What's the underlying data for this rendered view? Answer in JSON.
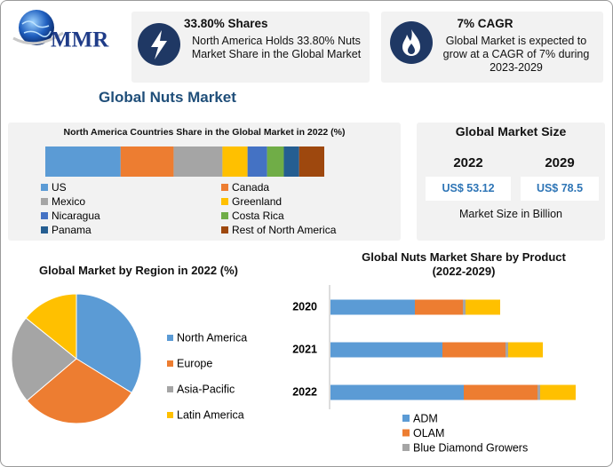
{
  "logo": "MMR",
  "title": "Global Nuts Market",
  "cards": [
    {
      "heading": "33.80% Shares",
      "text": "North America Holds 33.80% Nuts Market Share in the Global Market"
    },
    {
      "heading": "7% CAGR",
      "text": "Global Market is expected to grow at a CAGR of 7% during 2023-2029"
    }
  ],
  "market_size": {
    "title": "Global Market Size",
    "years": [
      "2022",
      "2029"
    ],
    "values": [
      "US$ 53.12",
      "US$ 78.5"
    ],
    "note": "Market Size in Billion"
  },
  "chart_data": [
    {
      "type": "bar",
      "orientation": "horizontal",
      "stacked": true,
      "title": "North America Countries Share in the Global Market in 2022 (%)",
      "categories": [
        null
      ],
      "series": [
        {
          "name": "US",
          "color": "#5b9bd5",
          "values": [
            27
          ]
        },
        {
          "name": "Canada",
          "color": "#ed7d31",
          "values": [
            19
          ]
        },
        {
          "name": "Mexico",
          "color": "#a5a5a5",
          "values": [
            17.5
          ]
        },
        {
          "name": "Greenland",
          "color": "#ffc000",
          "values": [
            9
          ]
        },
        {
          "name": "Nicaragua",
          "color": "#4472c4",
          "values": [
            7
          ]
        },
        {
          "name": "Costa Rica",
          "color": "#70ad47",
          "values": [
            6
          ]
        },
        {
          "name": "Panama",
          "color": "#255e91",
          "values": [
            5.5
          ]
        },
        {
          "name": "Rest of North America",
          "color": "#9e480e",
          "values": [
            9
          ]
        }
      ]
    },
    {
      "type": "pie",
      "title": "Global Market by Region in 2022 (%)",
      "categories": [
        "North America",
        "Europe",
        "Asia-Pacific",
        "Latin America"
      ],
      "values": [
        33.8,
        30,
        22,
        14.2
      ],
      "colors": [
        "#5b9bd5",
        "#ed7d31",
        "#a5a5a5",
        "#ffc000"
      ]
    },
    {
      "type": "bar",
      "orientation": "horizontal",
      "stacked": true,
      "title": "Global Nuts Market Share by Product (2022-2029)",
      "categories": [
        "2020",
        "2021",
        "2022"
      ],
      "series": [
        {
          "name": "ADM",
          "color": "#5b9bd5",
          "values": [
            95,
            126,
            150
          ]
        },
        {
          "name": "OLAM",
          "color": "#ed7d31",
          "values": [
            54,
            71,
            83
          ]
        },
        {
          "name": "Blue Diamond Growers",
          "color": "#a5a5a5",
          "values": [
            3,
            3,
            3
          ]
        },
        {
          "color": "#ffc000",
          "values": [
            39,
            39,
            40
          ]
        }
      ]
    }
  ]
}
